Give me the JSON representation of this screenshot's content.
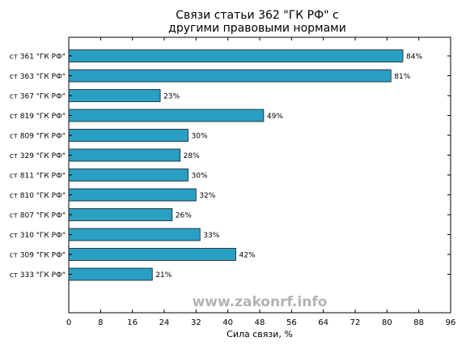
{
  "chart_data": {
    "type": "bar",
    "orientation": "horizontal",
    "title": "Связи статьи 362 \"ГК РФ\" с другими правовыми нормами",
    "title_lines": [
      "Связи статьи 362 \"ГК РФ\" с",
      "другими правовыми нормами"
    ],
    "xlabel": "Сила связи, %",
    "ylabel": "",
    "xlim": [
      0,
      96
    ],
    "xticks": [
      "0",
      "8",
      "16",
      "24",
      "32",
      "40",
      "48",
      "56",
      "64",
      "72",
      "80",
      "88",
      "96"
    ],
    "categories": [
      "ст 361 \"ГК РФ\"",
      "ст 363 \"ГК РФ\"",
      "ст 367 \"ГК РФ\"",
      "ст 819 \"ГК РФ\"",
      "ст 809 \"ГК РФ\"",
      "ст 329 \"ГК РФ\"",
      "ст 811 \"ГК РФ\"",
      "ст 810 \"ГК РФ\"",
      "ст 807 \"ГК РФ\"",
      "ст 310 \"ГК РФ\"",
      "ст 309 \"ГК РФ\"",
      "ст 333 \"ГК РФ\""
    ],
    "values": [
      84,
      81,
      23,
      49,
      30,
      28,
      30,
      32,
      26,
      33,
      42,
      21
    ],
    "data_labels": [
      "84%",
      "81%",
      "23%",
      "49%",
      "30%",
      "28%",
      "30%",
      "32%",
      "26%",
      "33%",
      "42%",
      "21%"
    ],
    "grid": false,
    "bar_color": "#2a9fc4",
    "bar_edge_color": "#1a1a1a"
  },
  "watermark": "www.zakonrf.info"
}
